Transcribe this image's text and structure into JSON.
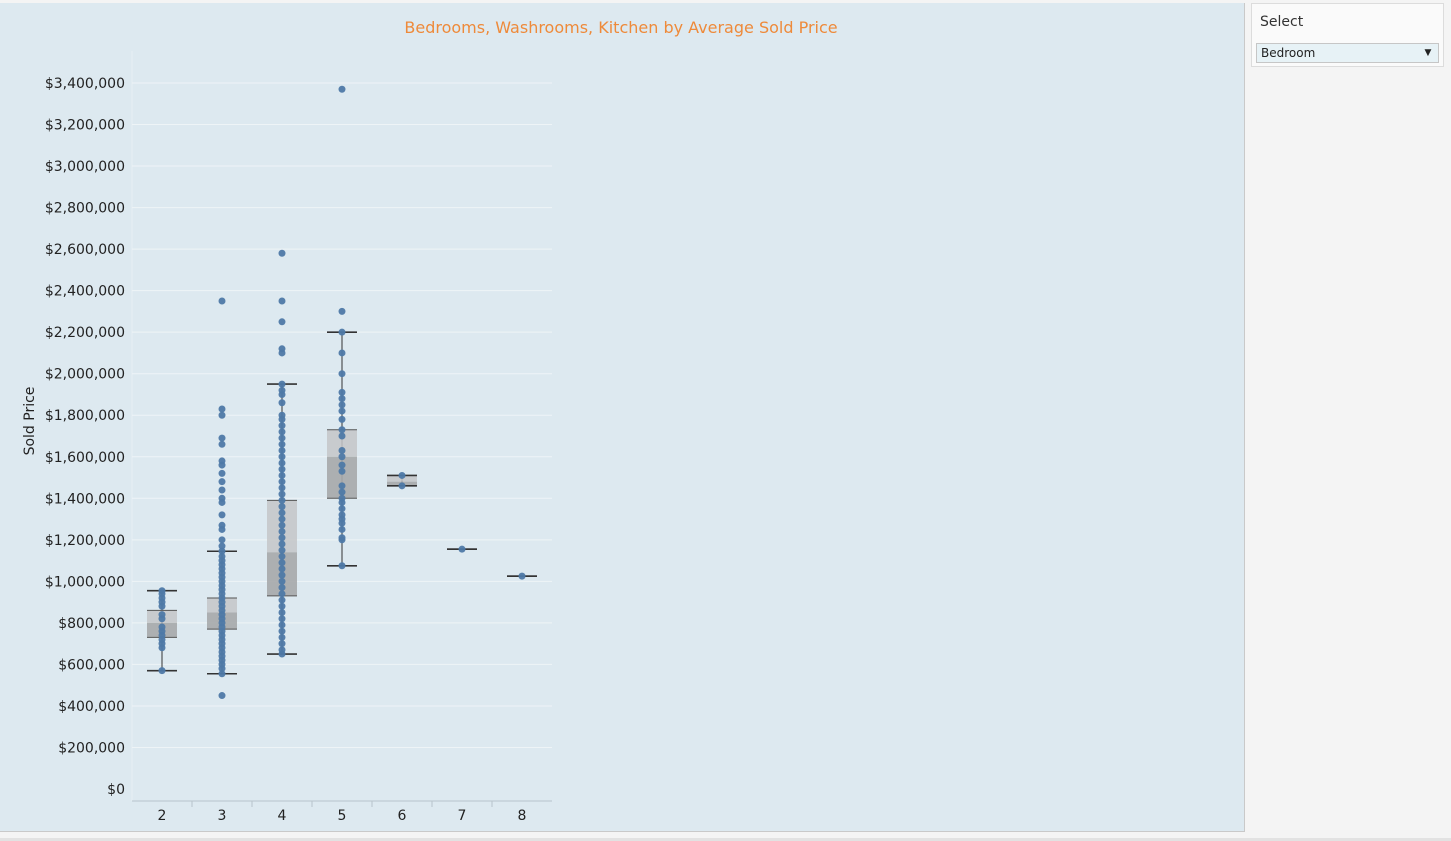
{
  "chart_data": {
    "type": "box",
    "title": "Bedrooms, Washrooms, Kitchen  by Average Sold Price",
    "ylabel": "Sold Price",
    "xlabel": "",
    "ylim": [
      0,
      3400000
    ],
    "yticks": [
      {
        "value": 0,
        "label": "$0"
      },
      {
        "value": 200000,
        "label": "$200,000"
      },
      {
        "value": 400000,
        "label": "$400,000"
      },
      {
        "value": 600000,
        "label": "$600,000"
      },
      {
        "value": 800000,
        "label": "$800,000"
      },
      {
        "value": 1000000,
        "label": "$1,000,000"
      },
      {
        "value": 1200000,
        "label": "$1,200,000"
      },
      {
        "value": 1400000,
        "label": "$1,400,000"
      },
      {
        "value": 1600000,
        "label": "$1,600,000"
      },
      {
        "value": 1800000,
        "label": "$1,800,000"
      },
      {
        "value": 2000000,
        "label": "$2,000,000"
      },
      {
        "value": 2200000,
        "label": "$2,200,000"
      },
      {
        "value": 2400000,
        "label": "$2,400,000"
      },
      {
        "value": 2600000,
        "label": "$2,600,000"
      },
      {
        "value": 2800000,
        "label": "$2,800,000"
      },
      {
        "value": 3000000,
        "label": "$3,000,000"
      },
      {
        "value": 3200000,
        "label": "$3,200,000"
      },
      {
        "value": 3400000,
        "label": "$3,400,000"
      }
    ],
    "grid": true,
    "categories": [
      "2",
      "3",
      "4",
      "5",
      "6",
      "7",
      "8"
    ],
    "boxes": [
      {
        "category": "2",
        "whisker_low": 570000,
        "q1": 730000,
        "median": 800000,
        "q3": 860000,
        "whisker_high": 955000,
        "points": [
          570000,
          680000,
          700000,
          720000,
          740000,
          760000,
          780000,
          820000,
          840000,
          880000,
          900000,
          920000,
          940000,
          955000
        ]
      },
      {
        "category": "3",
        "whisker_low": 555000,
        "q1": 770000,
        "median": 850000,
        "q3": 920000,
        "whisker_high": 1145000,
        "points": [
          450000,
          555000,
          580000,
          600000,
          620000,
          640000,
          660000,
          680000,
          700000,
          720000,
          740000,
          760000,
          780000,
          800000,
          820000,
          840000,
          860000,
          880000,
          900000,
          920000,
          940000,
          960000,
          980000,
          1000000,
          1020000,
          1040000,
          1060000,
          1080000,
          1100000,
          1120000,
          1145000,
          1170000,
          1200000,
          1250000,
          1270000,
          1320000,
          1380000,
          1400000,
          1440000,
          1480000,
          1520000,
          1560000,
          1580000,
          1660000,
          1690000,
          1800000,
          1830000,
          2350000
        ]
      },
      {
        "category": "4",
        "whisker_low": 650000,
        "q1": 930000,
        "median": 1140000,
        "q3": 1390000,
        "whisker_high": 1950000,
        "points": [
          650000,
          670000,
          700000,
          730000,
          760000,
          790000,
          820000,
          850000,
          880000,
          910000,
          940000,
          970000,
          1000000,
          1030000,
          1060000,
          1090000,
          1120000,
          1150000,
          1180000,
          1210000,
          1240000,
          1270000,
          1300000,
          1330000,
          1360000,
          1390000,
          1420000,
          1450000,
          1480000,
          1510000,
          1540000,
          1570000,
          1600000,
          1630000,
          1660000,
          1690000,
          1720000,
          1750000,
          1780000,
          1800000,
          1860000,
          1900000,
          1920000,
          1950000,
          2100000,
          2120000,
          2250000,
          2350000,
          2580000
        ]
      },
      {
        "category": "5",
        "whisker_low": 1075000,
        "q1": 1400000,
        "median": 1600000,
        "q3": 1730000,
        "whisker_high": 2200000,
        "points": [
          1075000,
          1200000,
          1210000,
          1250000,
          1280000,
          1300000,
          1320000,
          1350000,
          1380000,
          1400000,
          1430000,
          1460000,
          1530000,
          1560000,
          1600000,
          1630000,
          1700000,
          1730000,
          1780000,
          1820000,
          1850000,
          1880000,
          1910000,
          2000000,
          2100000,
          2200000,
          2300000,
          3370000
        ]
      },
      {
        "category": "6",
        "whisker_low": 1460000,
        "q1": 1460000,
        "median": 1480000,
        "q3": 1510000,
        "whisker_high": 1510000,
        "points": [
          1460000,
          1510000
        ]
      },
      {
        "category": "7",
        "whisker_low": 1155000,
        "q1": 1155000,
        "median": 1155000,
        "q3": 1155000,
        "whisker_high": 1155000,
        "points": [
          1155000
        ]
      },
      {
        "category": "8",
        "whisker_low": 1025000,
        "q1": 1025000,
        "median": 1025000,
        "q3": 1025000,
        "whisker_high": 1025000,
        "points": [
          1025000
        ]
      }
    ],
    "colors": {
      "point": "#4e79a7",
      "box_upper": "#c4c6c8",
      "box_lower": "#a6a8aa",
      "whisker": "#333333",
      "title": "#ee8a3a",
      "background": "#dde9f0",
      "grid": "#eef4f7"
    }
  },
  "filter": {
    "title": "Select",
    "selected": "Bedroom",
    "arrow_icon": "dropdown-caret-icon"
  }
}
